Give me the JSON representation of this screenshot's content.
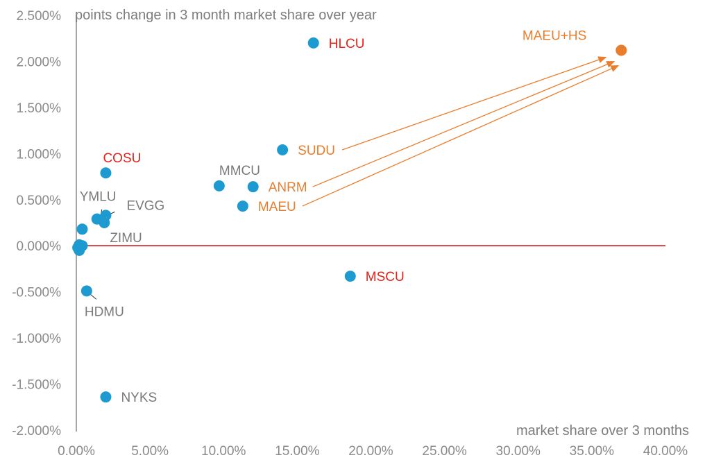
{
  "colors": {
    "point": "#1d9bd0",
    "highlight_point": "#ea7d2c",
    "label_gray": "#7a7a7a",
    "label_red": "#e2231a",
    "label_orange": "#ea7d2c",
    "zero_line": "#c8171e",
    "axis": "#a6a6a6"
  },
  "chart_data": {
    "type": "scatter",
    "title": "",
    "xlabel": "market share over 3 months",
    "ylabel": "points change in 3 month market share over year",
    "xlim": [
      0,
      0.4
    ],
    "ylim": [
      -0.02,
      0.025
    ],
    "xticks": [
      0,
      0.05,
      0.1,
      0.15,
      0.2,
      0.25,
      0.3,
      0.35,
      0.4
    ],
    "xtick_labels": [
      "0.00%",
      "5.00%",
      "10.00%",
      "15.00%",
      "20.00%",
      "25.00%",
      "30.00%",
      "35.00%",
      "40.00%"
    ],
    "yticks": [
      0.025,
      0.02,
      0.015,
      0.01,
      0.005,
      0,
      -0.005,
      -0.01,
      -0.015,
      -0.02
    ],
    "ytick_labels": [
      "2.500%",
      "2.000%",
      "1.500%",
      "1.000%",
      "0.500%",
      "0.000%",
      "-0.500%",
      "-1.000%",
      "-1.500%",
      "-2.000%"
    ],
    "reference_line": {
      "y": 0,
      "label": ""
    },
    "points": [
      {
        "label": "HLCU",
        "x": 0.161,
        "y": 0.022,
        "label_color": "red",
        "label_pos": "right"
      },
      {
        "label": "MAEU+HS",
        "x": 0.37,
        "y": 0.0212,
        "label_color": "orange",
        "label_pos": "above-left",
        "highlight": true
      },
      {
        "label": "SUDU",
        "x": 0.14,
        "y": 0.0104,
        "label_color": "orange",
        "label_pos": "right"
      },
      {
        "label": "COSU",
        "x": 0.02,
        "y": 0.0079,
        "label_color": "red",
        "label_pos": "above"
      },
      {
        "label": "MMCU",
        "x": 0.097,
        "y": 0.0065,
        "label_color": "gray",
        "label_pos": "above-right"
      },
      {
        "label": "ANRM",
        "x": 0.12,
        "y": 0.0064,
        "label_color": "orange",
        "label_pos": "right"
      },
      {
        "label": "MAEU",
        "x": 0.113,
        "y": 0.0043,
        "label_color": "orange",
        "label_pos": "right"
      },
      {
        "label": "EVGG",
        "x": 0.02,
        "y": 0.0033,
        "label_color": "gray",
        "label_pos": "right-leader"
      },
      {
        "label": "YMLU",
        "x": 0.014,
        "y": 0.0029,
        "label_color": "gray",
        "label_pos": "above-leader"
      },
      {
        "label": "ZIMU",
        "x": 0.019,
        "y": 0.0025,
        "label_color": "gray",
        "label_pos": "below-right"
      },
      {
        "label": "",
        "x": 0.004,
        "y": 0.0018
      },
      {
        "label": "",
        "x": 0.002,
        "y": 0.0001
      },
      {
        "label": "",
        "x": 0.004,
        "y": 0.0
      },
      {
        "label": "",
        "x": 0.001,
        "y": -0.0002
      },
      {
        "label": "",
        "x": 0.002,
        "y": -0.0005
      },
      {
        "label": "MSCU",
        "x": 0.186,
        "y": -0.0033,
        "label_color": "red",
        "label_pos": "right"
      },
      {
        "label": "HDMU",
        "x": 0.007,
        "y": -0.0049,
        "label_color": "gray",
        "label_pos": "below-leader"
      },
      {
        "label": "NYKS",
        "x": 0.02,
        "y": -0.0164,
        "label_color": "gray",
        "label_pos": "right"
      }
    ],
    "arrows": [
      {
        "from": "SUDU",
        "to": "MAEU+HS"
      },
      {
        "from": "ANRM",
        "to": "MAEU+HS"
      },
      {
        "from": "MAEU",
        "to": "MAEU+HS"
      }
    ]
  }
}
